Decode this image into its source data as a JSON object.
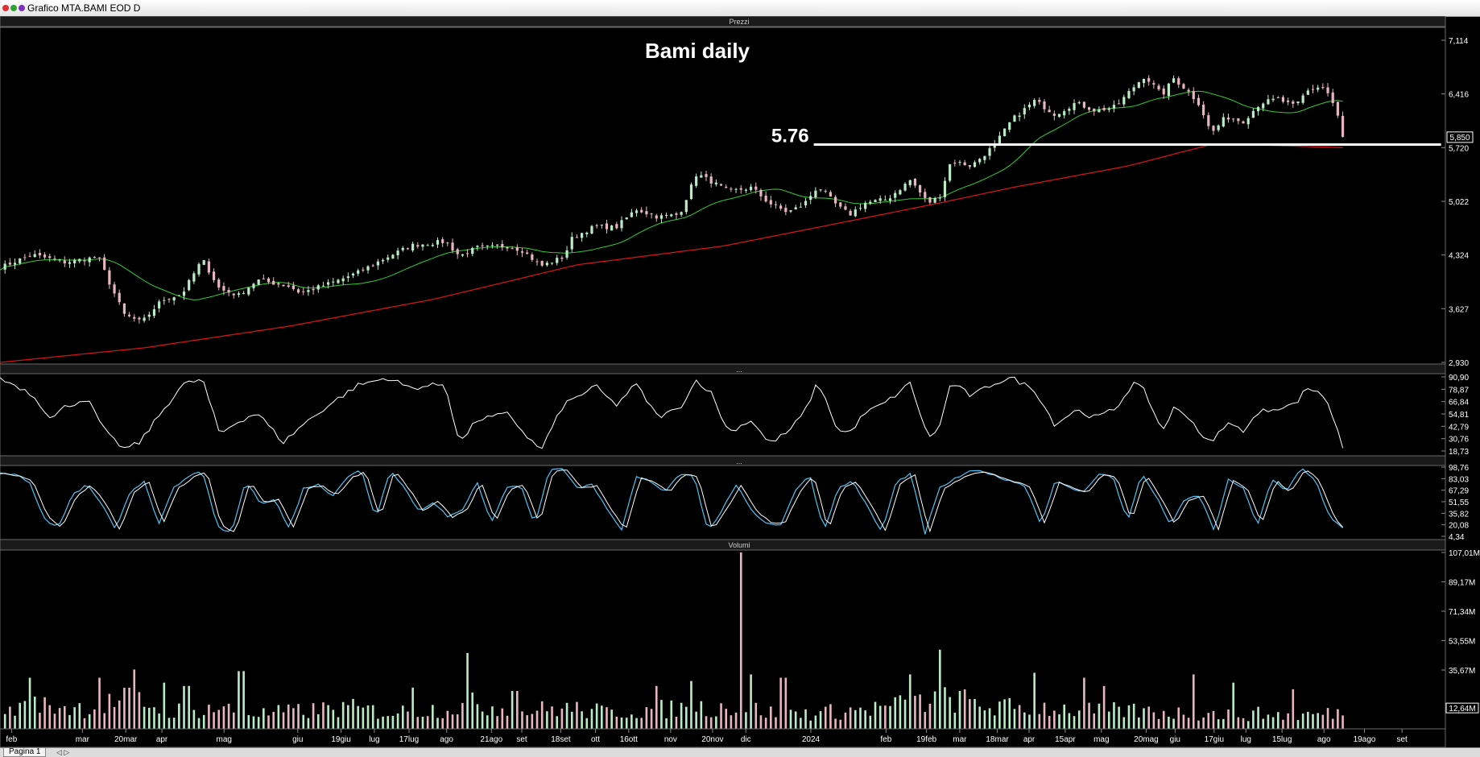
{
  "window": {
    "title": "Grafico MTA.BAMI EOD D",
    "tab_label": "Pagina 1",
    "tab_control": "◁ ▷",
    "panel_collapse": "..."
  },
  "colors": {
    "background": "#000000",
    "candle_up": "#b9ecc4",
    "candle_down": "#e8b6be",
    "ma_short": "#33cc33",
    "ma_long": "#d01515",
    "rsi_line": "#ffffff",
    "stoch_k": "#4fc3f7",
    "stoch_d": "#ffffff"
  },
  "chart_data": {
    "type": "line",
    "title": "Bami daily",
    "panels": {
      "price": {
        "label": "Prezzi",
        "y_ticks": [
          "7,114",
          "6,416",
          "5,720",
          "5,022",
          "4,324",
          "3,627",
          "2,930"
        ],
        "ylim": [
          2.93,
          7.114
        ],
        "last_price_label": "5,850",
        "support": {
          "value": 5.76,
          "label": "5.76",
          "x_start": 0.563,
          "x_end": 0.997
        }
      },
      "oscillator": {
        "y_ticks": [
          "90,90",
          "78,87",
          "66,84",
          "54,81",
          "42,79",
          "30,76",
          "18,73"
        ],
        "ylim": [
          18.73,
          90.9
        ]
      },
      "stochastic": {
        "y_ticks": [
          "98,76",
          "83,03",
          "67,29",
          "51,55",
          "35,82",
          "20,08",
          "4,34"
        ],
        "ylim": [
          4.34,
          98.76
        ]
      },
      "volume": {
        "label": "Volumi",
        "y_ticks": [
          "107,01M",
          "89,17M",
          "71,34M",
          "53,55M",
          "35,67M"
        ],
        "last_label": "12,64M",
        "ylim": [
          0,
          107.01
        ]
      }
    },
    "x_labels": [
      {
        "text": "feb",
        "x": 0.008
      },
      {
        "text": "mar",
        "x": 0.057
      },
      {
        "text": "20mar",
        "x": 0.087
      },
      {
        "text": "apr",
        "x": 0.112
      },
      {
        "text": "mag",
        "x": 0.155
      },
      {
        "text": "giu",
        "x": 0.206
      },
      {
        "text": "19giu",
        "x": 0.236
      },
      {
        "text": "lug",
        "x": 0.259
      },
      {
        "text": "17lug",
        "x": 0.283
      },
      {
        "text": "ago",
        "x": 0.309
      },
      {
        "text": "21ago",
        "x": 0.34
      },
      {
        "text": "set",
        "x": 0.361
      },
      {
        "text": "18set",
        "x": 0.388
      },
      {
        "text": "ott",
        "x": 0.412
      },
      {
        "text": "16ott",
        "x": 0.435
      },
      {
        "text": "nov",
        "x": 0.464
      },
      {
        "text": "20nov",
        "x": 0.493
      },
      {
        "text": "dic",
        "x": 0.516
      },
      {
        "text": "2024",
        "x": 0.561
      },
      {
        "text": "feb",
        "x": 0.613
      },
      {
        "text": "19feb",
        "x": 0.641
      },
      {
        "text": "mar",
        "x": 0.664
      },
      {
        "text": "18mar",
        "x": 0.69
      },
      {
        "text": "apr",
        "x": 0.712
      },
      {
        "text": "15apr",
        "x": 0.737
      },
      {
        "text": "mag",
        "x": 0.762
      },
      {
        "text": "20mag",
        "x": 0.793
      },
      {
        "text": "giu",
        "x": 0.813
      },
      {
        "text": "17giu",
        "x": 0.84
      },
      {
        "text": "lug",
        "x": 0.862
      },
      {
        "text": "15lug",
        "x": 0.887
      },
      {
        "text": "ago",
        "x": 0.916
      },
      {
        "text": "19ago",
        "x": 0.944
      },
      {
        "text": "set",
        "x": 0.97
      }
    ],
    "close_anchors": [
      [
        0.0,
        4.16
      ],
      [
        0.022,
        4.33
      ],
      [
        0.045,
        4.23
      ],
      [
        0.068,
        4.3
      ],
      [
        0.076,
        3.95
      ],
      [
        0.086,
        3.55
      ],
      [
        0.098,
        3.45
      ],
      [
        0.112,
        3.74
      ],
      [
        0.126,
        3.82
      ],
      [
        0.14,
        4.27
      ],
      [
        0.152,
        3.88
      ],
      [
        0.165,
        3.8
      ],
      [
        0.178,
        4.0
      ],
      [
        0.2,
        3.92
      ],
      [
        0.208,
        3.83
      ],
      [
        0.232,
        3.98
      ],
      [
        0.248,
        4.1
      ],
      [
        0.268,
        4.3
      ],
      [
        0.285,
        4.45
      ],
      [
        0.308,
        4.5
      ],
      [
        0.318,
        4.31
      ],
      [
        0.33,
        4.42
      ],
      [
        0.352,
        4.44
      ],
      [
        0.362,
        4.38
      ],
      [
        0.374,
        4.18
      ],
      [
        0.39,
        4.3
      ],
      [
        0.396,
        4.55
      ],
      [
        0.412,
        4.7
      ],
      [
        0.426,
        4.68
      ],
      [
        0.44,
        4.92
      ],
      [
        0.455,
        4.82
      ],
      [
        0.47,
        4.85
      ],
      [
        0.482,
        5.38
      ],
      [
        0.492,
        5.28
      ],
      [
        0.504,
        5.15
      ],
      [
        0.52,
        5.2
      ],
      [
        0.532,
        5.0
      ],
      [
        0.545,
        4.88
      ],
      [
        0.556,
        4.98
      ],
      [
        0.566,
        5.22
      ],
      [
        0.58,
        4.95
      ],
      [
        0.588,
        4.85
      ],
      [
        0.598,
        5.0
      ],
      [
        0.614,
        5.05
      ],
      [
        0.63,
        5.3
      ],
      [
        0.642,
        5.0
      ],
      [
        0.65,
        5.08
      ],
      [
        0.658,
        5.55
      ],
      [
        0.672,
        5.48
      ],
      [
        0.688,
        5.75
      ],
      [
        0.7,
        6.08
      ],
      [
        0.716,
        6.33
      ],
      [
        0.73,
        6.15
      ],
      [
        0.744,
        6.3
      ],
      [
        0.758,
        6.2
      ],
      [
        0.772,
        6.25
      ],
      [
        0.784,
        6.5
      ],
      [
        0.792,
        6.65
      ],
      [
        0.804,
        6.4
      ],
      [
        0.812,
        6.62
      ],
      [
        0.822,
        6.45
      ],
      [
        0.83,
        6.28
      ],
      [
        0.838,
        5.9
      ],
      [
        0.848,
        6.12
      ],
      [
        0.86,
        6.06
      ],
      [
        0.872,
        6.3
      ],
      [
        0.884,
        6.35
      ],
      [
        0.896,
        6.25
      ],
      [
        0.904,
        6.45
      ],
      [
        0.914,
        6.52
      ],
      [
        0.92,
        6.4
      ],
      [
        0.926,
        6.1
      ],
      [
        0.929,
        5.85
      ]
    ],
    "ma_long_anchors": [
      [
        0.0,
        2.93
      ],
      [
        0.1,
        3.12
      ],
      [
        0.2,
        3.4
      ],
      [
        0.3,
        3.75
      ],
      [
        0.4,
        4.2
      ],
      [
        0.5,
        4.44
      ],
      [
        0.57,
        4.7
      ],
      [
        0.65,
        5.0
      ],
      [
        0.7,
        5.2
      ],
      [
        0.78,
        5.48
      ],
      [
        0.84,
        5.77
      ],
      [
        0.929,
        5.72
      ]
    ],
    "oscillator_anchors": [
      [
        0.0,
        89
      ],
      [
        0.012,
        82
      ],
      [
        0.022,
        74
      ],
      [
        0.036,
        50
      ],
      [
        0.044,
        61
      ],
      [
        0.06,
        70
      ],
      [
        0.074,
        35
      ],
      [
        0.086,
        21
      ],
      [
        0.096,
        26
      ],
      [
        0.112,
        57
      ],
      [
        0.126,
        83
      ],
      [
        0.14,
        89
      ],
      [
        0.152,
        35
      ],
      [
        0.164,
        47
      ],
      [
        0.178,
        56
      ],
      [
        0.196,
        27
      ],
      [
        0.21,
        45
      ],
      [
        0.232,
        68
      ],
      [
        0.248,
        83
      ],
      [
        0.268,
        90
      ],
      [
        0.284,
        80
      ],
      [
        0.308,
        84
      ],
      [
        0.318,
        26
      ],
      [
        0.33,
        49
      ],
      [
        0.352,
        55
      ],
      [
        0.362,
        37
      ],
      [
        0.374,
        19
      ],
      [
        0.39,
        64
      ],
      [
        0.4,
        72
      ],
      [
        0.412,
        82
      ],
      [
        0.426,
        63
      ],
      [
        0.44,
        84
      ],
      [
        0.455,
        52
      ],
      [
        0.47,
        60
      ],
      [
        0.482,
        88
      ],
      [
        0.492,
        75
      ],
      [
        0.504,
        37
      ],
      [
        0.52,
        49
      ],
      [
        0.532,
        26
      ],
      [
        0.545,
        37
      ],
      [
        0.556,
        55
      ],
      [
        0.566,
        86
      ],
      [
        0.58,
        38
      ],
      [
        0.588,
        37
      ],
      [
        0.598,
        55
      ],
      [
        0.614,
        67
      ],
      [
        0.63,
        85
      ],
      [
        0.642,
        31
      ],
      [
        0.65,
        42
      ],
      [
        0.658,
        86
      ],
      [
        0.672,
        72
      ],
      [
        0.688,
        85
      ],
      [
        0.7,
        90
      ],
      [
        0.716,
        78
      ],
      [
        0.73,
        44
      ],
      [
        0.744,
        59
      ],
      [
        0.758,
        51
      ],
      [
        0.772,
        60
      ],
      [
        0.784,
        85
      ],
      [
        0.792,
        77
      ],
      [
        0.804,
        38
      ],
      [
        0.812,
        60
      ],
      [
        0.822,
        53
      ],
      [
        0.83,
        37
      ],
      [
        0.838,
        25
      ],
      [
        0.848,
        46
      ],
      [
        0.86,
        39
      ],
      [
        0.872,
        57
      ],
      [
        0.884,
        61
      ],
      [
        0.896,
        64
      ],
      [
        0.904,
        80
      ],
      [
        0.914,
        76
      ],
      [
        0.92,
        60
      ],
      [
        0.926,
        38
      ],
      [
        0.929,
        22
      ]
    ],
    "stochastic_anchors": [
      [
        0.0,
        92
      ],
      [
        0.01,
        88
      ],
      [
        0.02,
        80
      ],
      [
        0.03,
        30
      ],
      [
        0.04,
        15
      ],
      [
        0.05,
        60
      ],
      [
        0.06,
        75
      ],
      [
        0.07,
        50
      ],
      [
        0.08,
        12
      ],
      [
        0.09,
        65
      ],
      [
        0.1,
        80
      ],
      [
        0.11,
        20
      ],
      [
        0.12,
        70
      ],
      [
        0.13,
        85
      ],
      [
        0.14,
        95
      ],
      [
        0.15,
        18
      ],
      [
        0.16,
        8
      ],
      [
        0.17,
        80
      ],
      [
        0.18,
        50
      ],
      [
        0.19,
        55
      ],
      [
        0.2,
        15
      ],
      [
        0.21,
        70
      ],
      [
        0.22,
        75
      ],
      [
        0.23,
        60
      ],
      [
        0.24,
        85
      ],
      [
        0.25,
        95
      ],
      [
        0.26,
        28
      ],
      [
        0.27,
        96
      ],
      [
        0.28,
        70
      ],
      [
        0.29,
        38
      ],
      [
        0.3,
        52
      ],
      [
        0.31,
        30
      ],
      [
        0.32,
        40
      ],
      [
        0.33,
        80
      ],
      [
        0.34,
        22
      ],
      [
        0.35,
        70
      ],
      [
        0.36,
        75
      ],
      [
        0.37,
        20
      ],
      [
        0.38,
        95
      ],
      [
        0.39,
        96
      ],
      [
        0.4,
        70
      ],
      [
        0.41,
        75
      ],
      [
        0.42,
        40
      ],
      [
        0.43,
        12
      ],
      [
        0.44,
        85
      ],
      [
        0.45,
        80
      ],
      [
        0.46,
        65
      ],
      [
        0.47,
        90
      ],
      [
        0.48,
        88
      ],
      [
        0.49,
        10
      ],
      [
        0.5,
        42
      ],
      [
        0.51,
        75
      ],
      [
        0.52,
        40
      ],
      [
        0.53,
        22
      ],
      [
        0.54,
        20
      ],
      [
        0.55,
        65
      ],
      [
        0.56,
        90
      ],
      [
        0.57,
        12
      ],
      [
        0.58,
        70
      ],
      [
        0.59,
        80
      ],
      [
        0.6,
        45
      ],
      [
        0.61,
        10
      ],
      [
        0.62,
        78
      ],
      [
        0.63,
        90
      ],
      [
        0.64,
        8
      ],
      [
        0.65,
        70
      ],
      [
        0.66,
        82
      ],
      [
        0.67,
        92
      ],
      [
        0.68,
        94
      ],
      [
        0.69,
        85
      ],
      [
        0.7,
        80
      ],
      [
        0.71,
        72
      ],
      [
        0.72,
        20
      ],
      [
        0.73,
        80
      ],
      [
        0.74,
        70
      ],
      [
        0.75,
        65
      ],
      [
        0.76,
        90
      ],
      [
        0.77,
        85
      ],
      [
        0.78,
        25
      ],
      [
        0.79,
        90
      ],
      [
        0.8,
        58
      ],
      [
        0.81,
        20
      ],
      [
        0.82,
        55
      ],
      [
        0.83,
        60
      ],
      [
        0.84,
        12
      ],
      [
        0.85,
        82
      ],
      [
        0.86,
        70
      ],
      [
        0.87,
        20
      ],
      [
        0.88,
        82
      ],
      [
        0.89,
        65
      ],
      [
        0.9,
        98
      ],
      [
        0.91,
        82
      ],
      [
        0.92,
        30
      ],
      [
        0.929,
        15
      ]
    ],
    "volume_anchors": [
      [
        0.0,
        12
      ],
      [
        0.03,
        16
      ],
      [
        0.06,
        14
      ],
      [
        0.09,
        20
      ],
      [
        0.12,
        12
      ],
      [
        0.15,
        14
      ],
      [
        0.18,
        10
      ],
      [
        0.21,
        12
      ],
      [
        0.24,
        14
      ],
      [
        0.27,
        11
      ],
      [
        0.3,
        13
      ],
      [
        0.33,
        17
      ],
      [
        0.36,
        12
      ],
      [
        0.39,
        14
      ],
      [
        0.42,
        11
      ],
      [
        0.45,
        13
      ],
      [
        0.48,
        14
      ],
      [
        0.51,
        15
      ],
      [
        0.54,
        10
      ],
      [
        0.57,
        11
      ],
      [
        0.6,
        13
      ],
      [
        0.63,
        17
      ],
      [
        0.66,
        20
      ],
      [
        0.69,
        14
      ],
      [
        0.72,
        15
      ],
      [
        0.75,
        12
      ],
      [
        0.78,
        12
      ],
      [
        0.81,
        11
      ],
      [
        0.84,
        10
      ],
      [
        0.87,
        10
      ],
      [
        0.9,
        9
      ],
      [
        0.929,
        11
      ]
    ],
    "volume_spikes": [
      [
        0.021,
        31
      ],
      [
        0.069,
        31
      ],
      [
        0.094,
        36
      ],
      [
        0.114,
        28
      ],
      [
        0.129,
        26
      ],
      [
        0.167,
        35
      ],
      [
        0.286,
        25
      ],
      [
        0.322,
        46
      ],
      [
        0.356,
        23
      ],
      [
        0.453,
        26
      ],
      [
        0.477,
        29
      ],
      [
        0.514,
        107
      ],
      [
        0.519,
        33
      ],
      [
        0.542,
        31
      ],
      [
        0.63,
        33
      ],
      [
        0.651,
        48
      ],
      [
        0.717,
        34
      ],
      [
        0.75,
        31
      ],
      [
        0.765,
        26
      ],
      [
        0.827,
        33
      ],
      [
        0.854,
        28
      ],
      [
        0.896,
        24
      ]
    ]
  }
}
